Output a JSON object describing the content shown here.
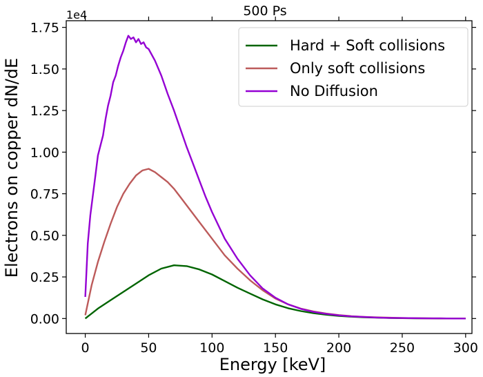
{
  "chart_data": {
    "type": "line",
    "title": "500 Ps",
    "xlabel": "Energy [keV]",
    "ylabel": "Electrons on copper dN/dE",
    "y_offset_text": "1e4",
    "xlim": [
      -15,
      305
    ],
    "ylim": [
      -0.09,
      1.79
    ],
    "x_ticks": [
      0,
      50,
      100,
      150,
      200,
      250,
      300
    ],
    "x_tick_labels": [
      "0",
      "50",
      "100",
      "150",
      "200",
      "250",
      "300"
    ],
    "y_ticks": [
      0,
      0.25,
      0.5,
      0.75,
      1.0,
      1.25,
      1.5,
      1.75
    ],
    "y_tick_labels": [
      "0.00",
      "0.25",
      "0.50",
      "0.75",
      "1.00",
      "1.25",
      "1.50",
      "1.75"
    ],
    "legend_position": "top-right",
    "grid": false,
    "series": [
      {
        "name": "Hard + Soft collisions",
        "color": "#006400",
        "x": [
          0,
          10,
          20,
          30,
          40,
          50,
          60,
          70,
          80,
          90,
          100,
          110,
          120,
          130,
          140,
          150,
          160,
          170,
          180,
          190,
          200,
          210,
          220,
          230,
          240,
          250,
          260,
          270,
          280,
          290,
          300
        ],
        "y": [
          0.0,
          0.06,
          0.11,
          0.16,
          0.21,
          0.26,
          0.3,
          0.32,
          0.315,
          0.295,
          0.265,
          0.225,
          0.185,
          0.15,
          0.115,
          0.085,
          0.062,
          0.045,
          0.032,
          0.023,
          0.016,
          0.011,
          0.007,
          0.005,
          0.003,
          0.002,
          0.001,
          0.001,
          0.0,
          0.0,
          0.0
        ]
      },
      {
        "name": "Only soft collisions",
        "color": "#BC5A5A",
        "x": [
          0,
          5,
          10,
          15,
          20,
          25,
          30,
          35,
          40,
          45,
          50,
          55,
          60,
          65,
          70,
          75,
          80,
          90,
          100,
          110,
          120,
          130,
          140,
          150,
          160,
          170,
          180,
          190,
          200,
          210,
          220,
          230,
          240,
          250,
          260,
          270,
          280,
          290,
          300
        ],
        "y": [
          0.02,
          0.2,
          0.34,
          0.46,
          0.57,
          0.67,
          0.75,
          0.81,
          0.86,
          0.89,
          0.9,
          0.88,
          0.85,
          0.82,
          0.78,
          0.73,
          0.68,
          0.58,
          0.48,
          0.38,
          0.3,
          0.23,
          0.17,
          0.12,
          0.085,
          0.06,
          0.043,
          0.03,
          0.021,
          0.014,
          0.01,
          0.007,
          0.005,
          0.003,
          0.002,
          0.001,
          0.001,
          0.0,
          0.0
        ]
      },
      {
        "name": "No Diffusion",
        "color": "#9400D3",
        "x": [
          0,
          2,
          4,
          6,
          8,
          10,
          12,
          14,
          16,
          18,
          20,
          22,
          24,
          26,
          28,
          30,
          32,
          34,
          36,
          38,
          40,
          42,
          44,
          46,
          48,
          50,
          55,
          60,
          65,
          70,
          75,
          80,
          85,
          90,
          95,
          100,
          110,
          120,
          130,
          140,
          150,
          160,
          170,
          180,
          190,
          200,
          210,
          220,
          230,
          240,
          250,
          260,
          270,
          280,
          290,
          300
        ],
        "y": [
          0.13,
          0.45,
          0.62,
          0.74,
          0.86,
          0.98,
          1.04,
          1.1,
          1.2,
          1.28,
          1.34,
          1.42,
          1.46,
          1.52,
          1.57,
          1.61,
          1.66,
          1.7,
          1.68,
          1.69,
          1.66,
          1.68,
          1.65,
          1.66,
          1.63,
          1.62,
          1.55,
          1.46,
          1.35,
          1.25,
          1.14,
          1.03,
          0.93,
          0.83,
          0.73,
          0.64,
          0.48,
          0.36,
          0.26,
          0.18,
          0.125,
          0.085,
          0.058,
          0.04,
          0.028,
          0.019,
          0.013,
          0.009,
          0.006,
          0.004,
          0.003,
          0.002,
          0.001,
          0.001,
          0.0,
          0.0
        ]
      }
    ]
  }
}
